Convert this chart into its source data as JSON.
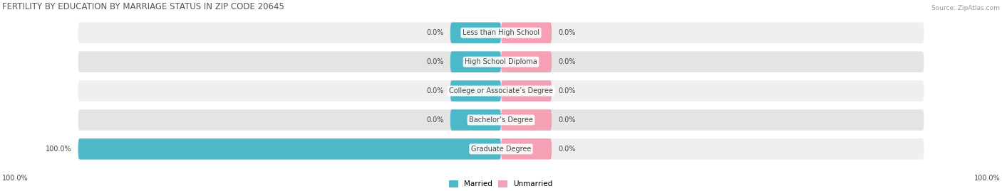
{
  "title": "FERTILITY BY EDUCATION BY MARRIAGE STATUS IN ZIP CODE 20645",
  "source": "Source: ZipAtlas.com",
  "categories": [
    "Less than High School",
    "High School Diploma",
    "College or Associate’s Degree",
    "Bachelor’s Degree",
    "Graduate Degree"
  ],
  "married": [
    0.0,
    0.0,
    0.0,
    0.0,
    100.0
  ],
  "unmarried": [
    0.0,
    0.0,
    0.0,
    0.0,
    0.0
  ],
  "married_color": "#4db8c8",
  "unmarried_color": "#f4a0b5",
  "row_bg_even": "#efefef",
  "row_bg_odd": "#e4e4e4",
  "label_color": "#444444",
  "title_color": "#555555",
  "source_color": "#999999",
  "axis_label_left": "100.0%",
  "axis_label_right": "100.0%",
  "stub_pct": 12.0,
  "max_val": 100.0,
  "figsize": [
    14.06,
    2.69
  ],
  "dpi": 100
}
